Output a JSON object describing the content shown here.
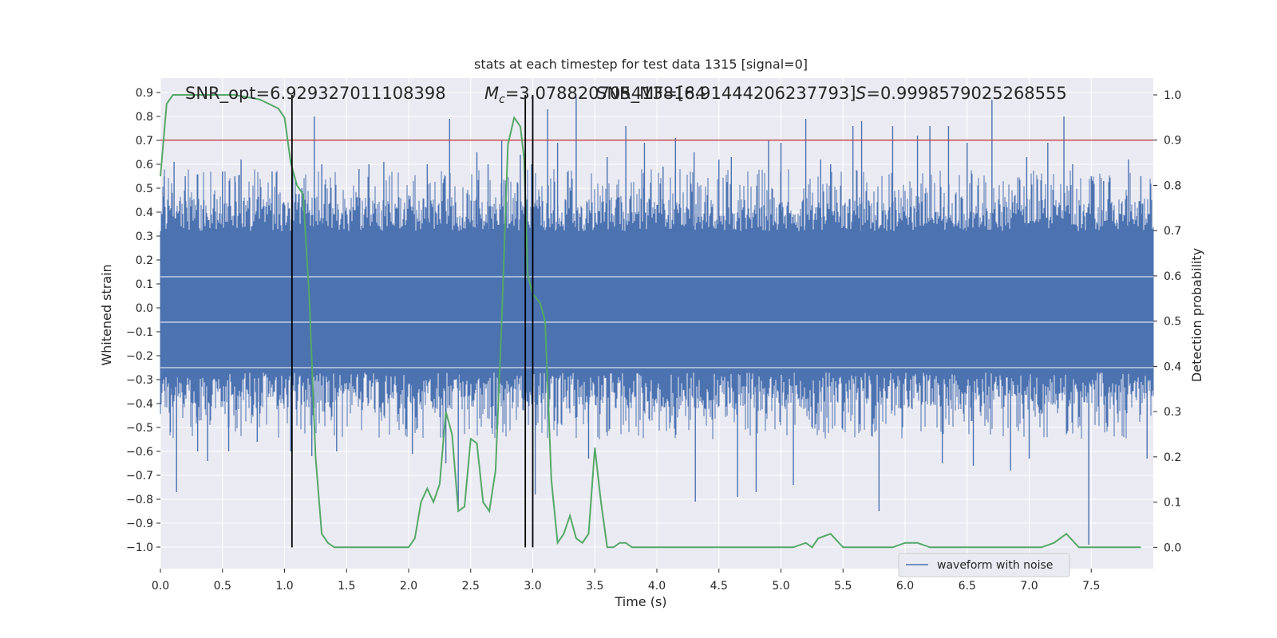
{
  "chart_data": {
    "type": "line",
    "title": "stats at each timestep for test data 1315 [signal=0]",
    "xlabel": "Time (s)",
    "ylabel": "Whitened strain",
    "ylabel_right": "Detection probability",
    "xlim": [
      0,
      8
    ],
    "ylim_left": [
      -1.09,
      0.96
    ],
    "ylim_right": [
      -0.047,
      1.037
    ],
    "x_ticks": [
      "0.0",
      "0.5",
      "1.0",
      "1.5",
      "2.0",
      "2.5",
      "3.0",
      "3.5",
      "4.0",
      "4.5",
      "5.0",
      "5.5",
      "6.0",
      "6.5",
      "7.0",
      "7.5"
    ],
    "y_ticks_left": [
      "0.9",
      "0.8",
      "0.7",
      "0.6",
      "0.5",
      "0.4",
      "0.3",
      "0.2",
      "0.1",
      "0.0",
      "-0.1",
      "-0.2",
      "-0.3",
      "-0.4",
      "-0.5",
      "-0.6",
      "-0.7",
      "-0.8",
      "-0.9",
      "-1.0"
    ],
    "y_ticks_right": [
      "1.0",
      "0.9",
      "0.8",
      "0.7",
      "0.6",
      "0.5",
      "0.4",
      "0.3",
      "0.2",
      "0.1",
      "0.0"
    ],
    "grid": true,
    "legend_position": "lower-right",
    "annotations": {
      "snr": "SNR_opt=6.929327011108398",
      "mc_prefix": "M",
      "mc_sub": "c",
      "mc_value": "=3.0788207054138184",
      "snr_mf": "SNR_MF=[6.91444206237793]",
      "s_prefix": "S",
      "s_value": "=0.9998579025268555"
    },
    "threshold": {
      "value": 0.9,
      "color": "#c44e52"
    },
    "vertical_lines_s": [
      1.06,
      2.94,
      3.0
    ],
    "series": [
      {
        "name": "waveform with noise",
        "axis": "left",
        "color": "#4c72b0",
        "envelope": {
          "core_top": 0.32,
          "core_bottom": -0.27,
          "peaks": [
            [
              0.03,
              0.55
            ],
            [
              0.08,
              -0.52
            ],
            [
              0.11,
              0.61
            ],
            [
              0.13,
              -0.77
            ],
            [
              0.2,
              0.55
            ],
            [
              0.3,
              -0.6
            ],
            [
              0.35,
              0.45
            ],
            [
              0.38,
              -0.64
            ],
            [
              0.5,
              0.57
            ],
            [
              0.55,
              -0.6
            ],
            [
              0.6,
              0.55
            ],
            [
              0.65,
              0.62
            ],
            [
              0.78,
              -0.56
            ],
            [
              0.9,
              0.57
            ],
            [
              1.05,
              -0.6
            ],
            [
              1.14,
              0.5
            ],
            [
              1.22,
              -0.62
            ],
            [
              1.24,
              0.8
            ],
            [
              1.3,
              0.6
            ],
            [
              1.42,
              -0.6
            ],
            [
              1.6,
              0.58
            ],
            [
              1.68,
              0.6
            ],
            [
              1.8,
              0.61
            ],
            [
              2.03,
              -0.61
            ],
            [
              2.15,
              0.6
            ],
            [
              2.3,
              -0.65
            ],
            [
              2.33,
              0.79
            ],
            [
              2.4,
              -0.85
            ],
            [
              2.55,
              0.65
            ],
            [
              2.64,
              0.6
            ],
            [
              2.75,
              0.7
            ],
            [
              2.9,
              0.64
            ],
            [
              2.99,
              0.6
            ],
            [
              3.02,
              -0.78
            ],
            [
              3.12,
              0.83
            ],
            [
              3.2,
              0.69
            ],
            [
              3.35,
              0.88
            ],
            [
              3.45,
              -0.63
            ],
            [
              3.6,
              0.63
            ],
            [
              3.75,
              0.76
            ],
            [
              3.9,
              0.69
            ],
            [
              4.05,
              0.59
            ],
            [
              4.15,
              0.71
            ],
            [
              4.3,
              0.65
            ],
            [
              4.31,
              -0.81
            ],
            [
              4.5,
              0.62
            ],
            [
              4.6,
              0.63
            ],
            [
              4.65,
              -0.79
            ],
            [
              4.8,
              -0.77
            ],
            [
              4.9,
              0.7
            ],
            [
              5.0,
              0.69
            ],
            [
              5.1,
              -0.74
            ],
            [
              5.2,
              0.79
            ],
            [
              5.32,
              0.62
            ],
            [
              5.4,
              0.6
            ],
            [
              5.58,
              0.76
            ],
            [
              5.65,
              0.78
            ],
            [
              5.79,
              -0.85
            ],
            [
              5.9,
              0.76
            ],
            [
              6.1,
              0.72
            ],
            [
              6.2,
              0.76
            ],
            [
              6.3,
              -0.65
            ],
            [
              6.35,
              0.76
            ],
            [
              6.5,
              0.69
            ],
            [
              6.55,
              -0.66
            ],
            [
              6.7,
              0.87
            ],
            [
              6.85,
              -0.68
            ],
            [
              6.98,
              0.63
            ],
            [
              7.0,
              -0.63
            ],
            [
              7.15,
              0.69
            ],
            [
              7.28,
              0.8
            ],
            [
              7.35,
              0.6
            ],
            [
              7.48,
              -0.99
            ],
            [
              7.5,
              0.55
            ],
            [
              7.6,
              0.53
            ],
            [
              7.8,
              0.62
            ],
            [
              7.9,
              0.55
            ],
            [
              7.95,
              -0.63
            ]
          ]
        }
      },
      {
        "name": "detection probability",
        "axis": "right",
        "color": "#55a868",
        "x": [
          0.0,
          0.05,
          0.1,
          0.2,
          0.4,
          0.6,
          0.8,
          0.95,
          1.0,
          1.05,
          1.1,
          1.15,
          1.2,
          1.25,
          1.3,
          1.35,
          1.4,
          1.45,
          1.5,
          1.6,
          1.7,
          1.8,
          1.9,
          2.0,
          2.05,
          2.1,
          2.15,
          2.2,
          2.25,
          2.3,
          2.35,
          2.4,
          2.45,
          2.5,
          2.55,
          2.6,
          2.65,
          2.7,
          2.75,
          2.8,
          2.85,
          2.9,
          2.93,
          2.96,
          3.0,
          3.03,
          3.06,
          3.1,
          3.15,
          3.2,
          3.25,
          3.3,
          3.35,
          3.4,
          3.45,
          3.5,
          3.55,
          3.6,
          3.65,
          3.7,
          3.75,
          3.8,
          3.85,
          3.9,
          4.0,
          4.1,
          4.2,
          4.3,
          4.4,
          4.5,
          4.6,
          4.7,
          4.8,
          4.9,
          5.0,
          5.1,
          5.2,
          5.25,
          5.3,
          5.4,
          5.5,
          5.55,
          5.6,
          5.7,
          5.8,
          5.9,
          6.0,
          6.1,
          6.2,
          6.3,
          6.35,
          6.4,
          6.5,
          6.6,
          6.7,
          6.8,
          6.9,
          7.0,
          7.1,
          7.2,
          7.3,
          7.4,
          7.45,
          7.5,
          7.55,
          7.6,
          7.7,
          7.8,
          7.9
        ],
        "values": [
          0.82,
          0.98,
          1.0,
          1.0,
          1.0,
          1.0,
          0.99,
          0.97,
          0.95,
          0.85,
          0.8,
          0.78,
          0.55,
          0.2,
          0.03,
          0.01,
          0.0,
          0.0,
          0.0,
          0.0,
          0.0,
          0.0,
          0.0,
          0.0,
          0.02,
          0.1,
          0.13,
          0.1,
          0.14,
          0.3,
          0.25,
          0.08,
          0.09,
          0.24,
          0.23,
          0.1,
          0.08,
          0.17,
          0.5,
          0.89,
          0.95,
          0.93,
          0.86,
          0.6,
          0.56,
          0.55,
          0.54,
          0.5,
          0.15,
          0.01,
          0.03,
          0.07,
          0.02,
          0.01,
          0.03,
          0.22,
          0.1,
          0.0,
          0.0,
          0.01,
          0.01,
          0.0,
          0.0,
          0.0,
          0.0,
          0.0,
          0.0,
          0.0,
          0.0,
          0.0,
          0.0,
          0.0,
          0.0,
          0.0,
          0.0,
          0.0,
          0.01,
          0.0,
          0.02,
          0.03,
          0.0,
          0.0,
          0.0,
          0.0,
          0.0,
          0.0,
          0.01,
          0.01,
          0.0,
          0.0,
          0.0,
          0.0,
          0.0,
          0.0,
          0.0,
          0.0,
          0.0,
          0.0,
          0.0,
          0.01,
          0.03,
          0.0,
          0.0,
          0.0,
          0.0,
          0.0,
          0.0,
          0.0,
          0.0
        ]
      }
    ]
  }
}
